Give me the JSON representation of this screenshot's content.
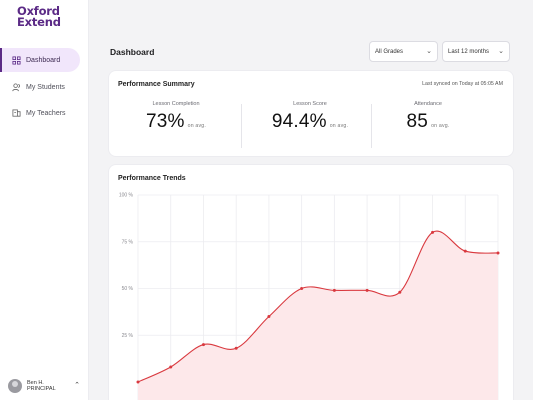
{
  "brand": {
    "line1": "Oxford",
    "line2": "Extend"
  },
  "sidebar": {
    "items": [
      {
        "label": "Dashboard",
        "icon": "grid-icon",
        "active": true
      },
      {
        "label": "My Students",
        "icon": "people-icon",
        "active": false
      },
      {
        "label": "My Teachers",
        "icon": "teacher-icon",
        "active": false
      }
    ],
    "user": {
      "name": "Ben H.",
      "role": "PRINCIPAL"
    }
  },
  "header": {
    "title": "Dashboard",
    "grade_filter": "All Grades",
    "period_filter": "Last 12 months"
  },
  "summary": {
    "title": "Performance Summary",
    "sync": "Last synced on Today at 05:05 AM",
    "metrics": [
      {
        "label": "Lesson Completion",
        "value": "73%",
        "suffix": "on avg."
      },
      {
        "label": "Lesson Score",
        "value": "94.4%",
        "suffix": "on avg."
      },
      {
        "label": "Attendance",
        "value": "85",
        "suffix": "on avg."
      }
    ]
  },
  "trends": {
    "title": "Performance Trends"
  },
  "colors": {
    "accent": "#5b2a86",
    "line": "#d9393f",
    "area": "#fde8ea"
  },
  "chart_data": {
    "type": "area",
    "title": "Performance Trends",
    "x": [
      0,
      1,
      2,
      3,
      4,
      5,
      6,
      7,
      8,
      9,
      10,
      11
    ],
    "series": [
      {
        "values": [
          0,
          8,
          20,
          18,
          35,
          50,
          49,
          49,
          48,
          80,
          70,
          69
        ]
      }
    ],
    "ylim": [
      0,
      100
    ],
    "yticks": [
      "100 %",
      "75 %",
      "50 %",
      "25 %"
    ],
    "grid": true
  }
}
